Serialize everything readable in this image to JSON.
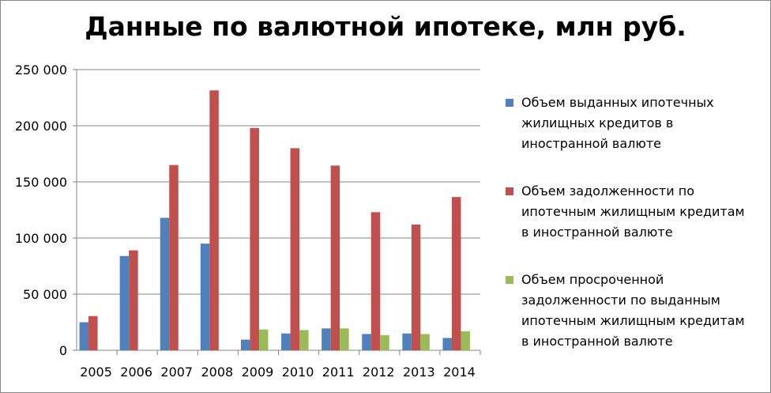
{
  "chart_data": {
    "type": "bar",
    "title": "Данные по валютной ипотеке, млн руб.",
    "xlabel": "",
    "ylabel": "",
    "ylim": [
      0,
      250000
    ],
    "yticks": [
      0,
      50000,
      100000,
      150000,
      200000,
      250000
    ],
    "ytick_labels": [
      "0",
      "50 000",
      "100 000",
      "150 000",
      "200 000",
      "250 000"
    ],
    "grid": true,
    "legend_position": "right",
    "categories": [
      "2005",
      "2006",
      "2007",
      "2008",
      "2009",
      "2010",
      "2011",
      "2012",
      "2013",
      "2014"
    ],
    "series": [
      {
        "name": "Объем выданных ипотечных жилищных кредитов в иностранной валюте",
        "color": "#4F81BD",
        "values": [
          25000,
          84000,
          118000,
          95000,
          9500,
          15000,
          19500,
          14500,
          15000,
          11000
        ]
      },
      {
        "name": "Объем задолженности по ипотечным жилищным кредитам в иностранной валюте",
        "color": "#C0504D",
        "values": [
          30500,
          89000,
          165000,
          231500,
          198000,
          180000,
          164500,
          123000,
          112000,
          136500
        ]
      },
      {
        "name": "Объем просроченной задолженности по выданным ипотечным жилищным кредитам в иностранной валюте",
        "color": "#9BBB59",
        "values": [
          null,
          null,
          null,
          null,
          18500,
          18000,
          19500,
          13500,
          14500,
          17000
        ]
      }
    ]
  },
  "legend": {
    "items": [
      {
        "lines": [
          "Объем выданных ипотечных",
          "жилищных кредитов в",
          "иностранной валюте"
        ]
      },
      {
        "lines": [
          "Объем задолженности по",
          "ипотечным жилищным кредитам",
          "в иностранной валюте"
        ]
      },
      {
        "lines": [
          "Объем просроченной",
          "задолженности по выданным",
          "ипотечным жилищным кредитам",
          "в иностранной валюте"
        ]
      }
    ]
  }
}
